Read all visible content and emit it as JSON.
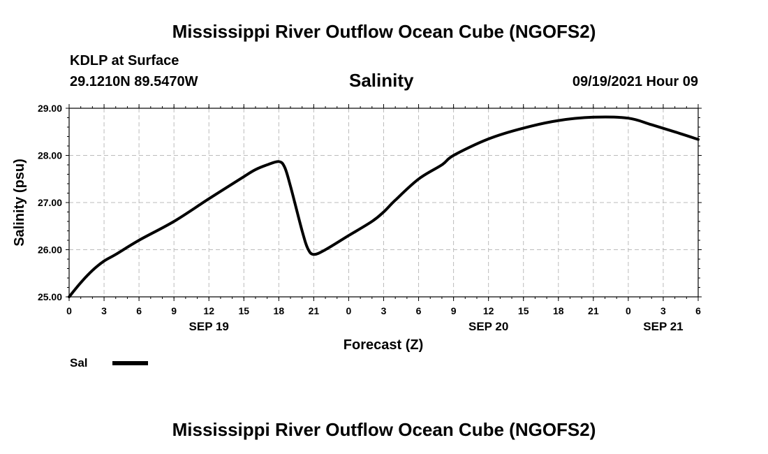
{
  "header": {
    "title": "Mississippi River Outflow Ocean Cube (NGOFS2)",
    "station": "KDLP at Surface",
    "coords": "29.1210N  89.5470W",
    "variable": "Salinity",
    "datetime": "09/19/2021 Hour 09"
  },
  "footer": {
    "title": "Mississippi River Outflow Ocean Cube (NGOFS2)"
  },
  "legend": {
    "label": "Sal"
  },
  "colors": {
    "line": "#000000",
    "grid": "#bbbbbb"
  },
  "chart_data": {
    "type": "line",
    "title": "Salinity",
    "xlabel": "Forecast (Z)",
    "ylabel": "Salinity (psu)",
    "xlim": [
      0,
      54
    ],
    "ylim": [
      25.0,
      29.0
    ],
    "yticks": [
      25.0,
      26.0,
      27.0,
      28.0,
      29.0
    ],
    "ytick_labels": [
      "25.00",
      "26.00",
      "27.00",
      "28.00",
      "29.00"
    ],
    "xticks": [
      0,
      3,
      6,
      9,
      12,
      15,
      18,
      21,
      24,
      27,
      30,
      33,
      36,
      39,
      42,
      45,
      48,
      51,
      54
    ],
    "xtick_labels": [
      "0",
      "3",
      "6",
      "9",
      "12",
      "15",
      "18",
      "21",
      "0",
      "3",
      "6",
      "9",
      "12",
      "15",
      "18",
      "21",
      "0",
      "3",
      "6"
    ],
    "date_labels": [
      {
        "x": 12,
        "label": "SEP 19"
      },
      {
        "x": 36,
        "label": "SEP 20"
      },
      {
        "x": 51,
        "label": "SEP 21"
      }
    ],
    "grid": true,
    "series": [
      {
        "name": "Sal",
        "x": [
          0,
          1,
          2,
          3,
          4,
          6,
          9,
          12,
          15,
          16,
          17,
          18,
          18.5,
          19,
          20,
          20.5,
          21,
          22,
          24,
          26,
          27,
          28,
          30,
          32,
          33,
          36,
          39,
          42,
          45,
          48,
          50,
          52,
          54
        ],
        "y": [
          25.0,
          25.3,
          25.56,
          25.76,
          25.9,
          26.2,
          26.6,
          27.08,
          27.55,
          27.7,
          27.8,
          27.87,
          27.75,
          27.35,
          26.4,
          26.02,
          25.9,
          26.0,
          26.3,
          26.6,
          26.8,
          27.05,
          27.5,
          27.8,
          28.0,
          28.35,
          28.58,
          28.74,
          28.81,
          28.79,
          28.65,
          28.5,
          28.34
        ]
      }
    ]
  }
}
